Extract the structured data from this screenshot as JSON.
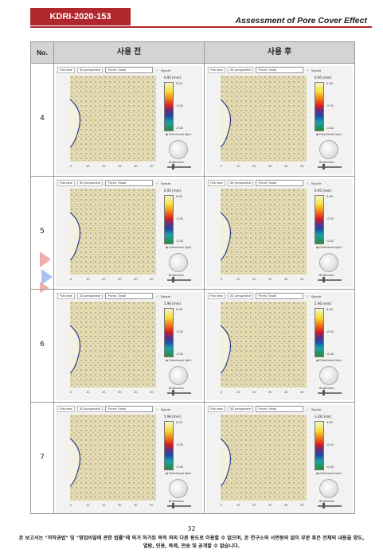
{
  "header": {
    "report_id": "KDRI-2020-153",
    "title": "Assessment of Pore Cover Effect"
  },
  "table": {
    "headers": {
      "no": "No.",
      "before": "사용 전",
      "after": "사용 후"
    },
    "rows": [
      {
        "no": "4",
        "before_scale": "6.95 [mm]",
        "after_scale": "0.95 [mm]"
      },
      {
        "no": "5",
        "before_scale": "6.95 [mm]",
        "after_scale": "6.95 [mm]"
      },
      {
        "no": "6",
        "before_scale": "5.96 [mm]",
        "after_scale": "5.96 [mm]"
      },
      {
        "no": "7",
        "before_scale": "5.98 [mm]",
        "after_scale": "3.28 [mm]"
      }
    ]
  },
  "viewer": {
    "flat_view": "Flat view",
    "perspective": "3D perspective",
    "mode": "Pores: Small",
    "sync": "Synchr",
    "directional_light": "Directional light",
    "brightness": "Brightness",
    "ticks": [
      "0.00",
      "-0.01",
      "-0.02"
    ],
    "x_ticks": [
      "0",
      "10",
      "20",
      "30",
      "40",
      "50"
    ]
  },
  "footer": {
    "page_number": "32",
    "notice": "본 보고서는 \"저작권법\" 및 \"영업비밀에 관한 법률\"에 의거 허가된 목적 외의 다른 용도로 이용할 수 없으며, 본 연구소의 서면동의 없이 부분 혹은 전체의 내용을 양도, 열람, 인용, 복제, 전송 및 공개할 수 없습니다."
  },
  "colors": {
    "accent": "#b0282d",
    "header_bg": "#d4d4d4"
  }
}
